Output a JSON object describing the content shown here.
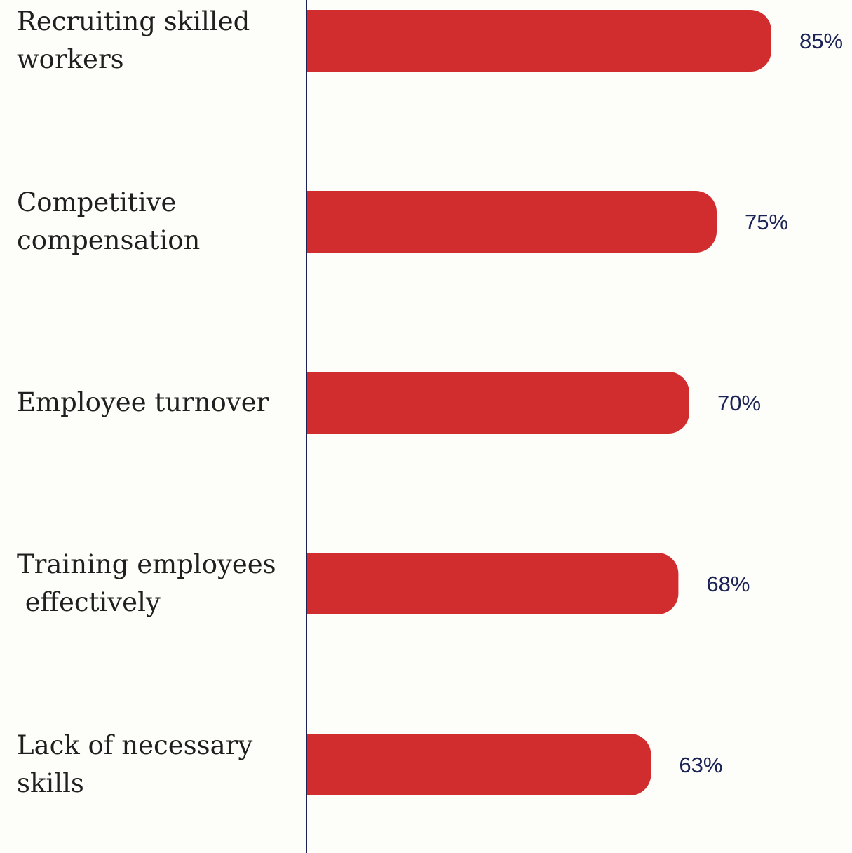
{
  "colors": {
    "background": "#fdfdf9",
    "bar": "#d12d2f",
    "axis": "#1b2356",
    "value_text": "#1b2356",
    "label_text": "#1f1f1f"
  },
  "chart_data": {
    "type": "bar",
    "orientation": "horizontal",
    "categories": [
      "Recruiting skilled workers",
      "Competitive compensation",
      "Employee turnover",
      "Training employees effectively",
      "Lack of necessary skills"
    ],
    "category_label_lines": [
      [
        "Recruiting skilled",
        "workers"
      ],
      [
        "Competitive",
        "compensation"
      ],
      [
        "Employee turnover"
      ],
      [
        "Training employees",
        " effectively"
      ],
      [
        "Lack of necessary",
        "skills"
      ]
    ],
    "values": [
      85,
      75,
      70,
      68,
      63
    ],
    "value_labels": [
      "85%",
      "75%",
      "70%",
      "68%",
      "63%"
    ],
    "unit": "%",
    "xlim": [
      0,
      100
    ],
    "title": "",
    "xlabel": "",
    "ylabel": "",
    "grid": false,
    "legend": "none"
  }
}
